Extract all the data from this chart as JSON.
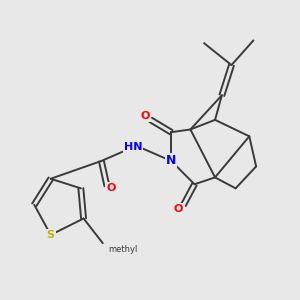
{
  "background_color": "#e8e8e8",
  "bond_color": "#3a3a3a",
  "atom_colors": {
    "O": "#ff0000",
    "N": "#0000ff",
    "S": "#b8b800",
    "C": "#3a3a3a"
  },
  "figsize": [
    3.0,
    3.0
  ],
  "dpi": 100
}
